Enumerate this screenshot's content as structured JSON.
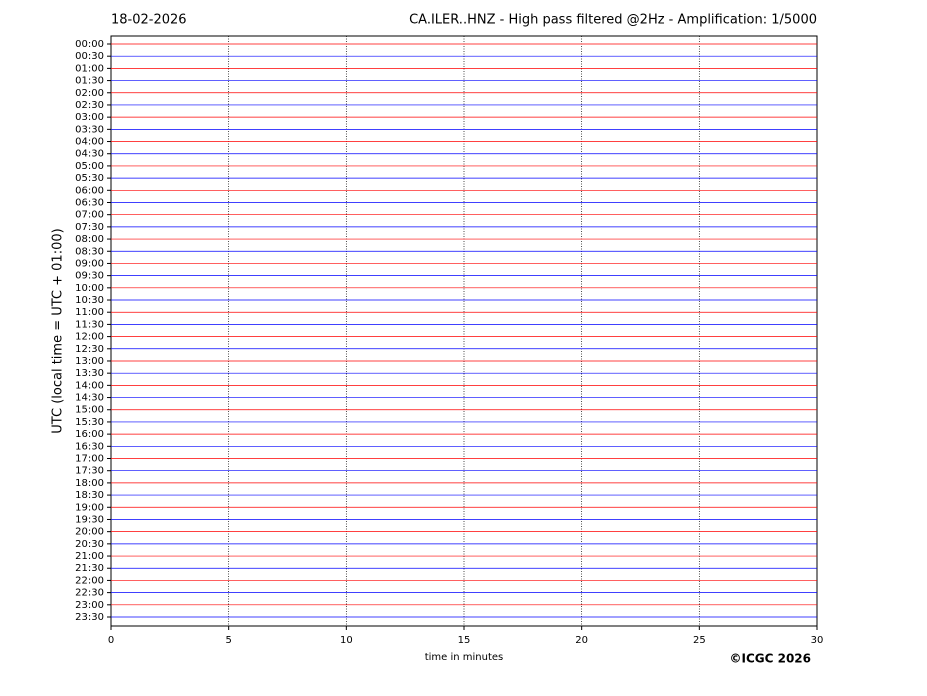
{
  "chart_data": {
    "type": "helicorder",
    "date": "18-02-2026",
    "title": "CA.ILER..HNZ - High pass filtered @2Hz - Amplification: 1/5000",
    "ylabel": "UTC (local time = UTC + 01:00)",
    "xlabel": "time in minutes",
    "credit": "©ICGC 2026",
    "categories": [
      "00:00",
      "00:30",
      "01:00",
      "01:30",
      "02:00",
      "02:30",
      "03:00",
      "03:30",
      "04:00",
      "04:30",
      "05:00",
      "05:30",
      "06:00",
      "06:30",
      "07:00",
      "07:30",
      "08:00",
      "08:30",
      "09:00",
      "09:30",
      "10:00",
      "10:30",
      "11:00",
      "11:30",
      "12:00",
      "12:30",
      "13:00",
      "13:30",
      "14:00",
      "14:30",
      "15:00",
      "15:30",
      "16:00",
      "16:30",
      "17:00",
      "17:30",
      "18:00",
      "18:30",
      "19:00",
      "19:30",
      "20:00",
      "20:30",
      "21:00",
      "21:30",
      "22:00",
      "22:30",
      "23:00",
      "23:30"
    ],
    "trace_colors": [
      "#ff0000",
      "#0000ff"
    ],
    "xlim": [
      0,
      30
    ],
    "xticks": [
      0,
      5,
      10,
      15,
      20,
      25,
      30
    ],
    "grid": true
  }
}
